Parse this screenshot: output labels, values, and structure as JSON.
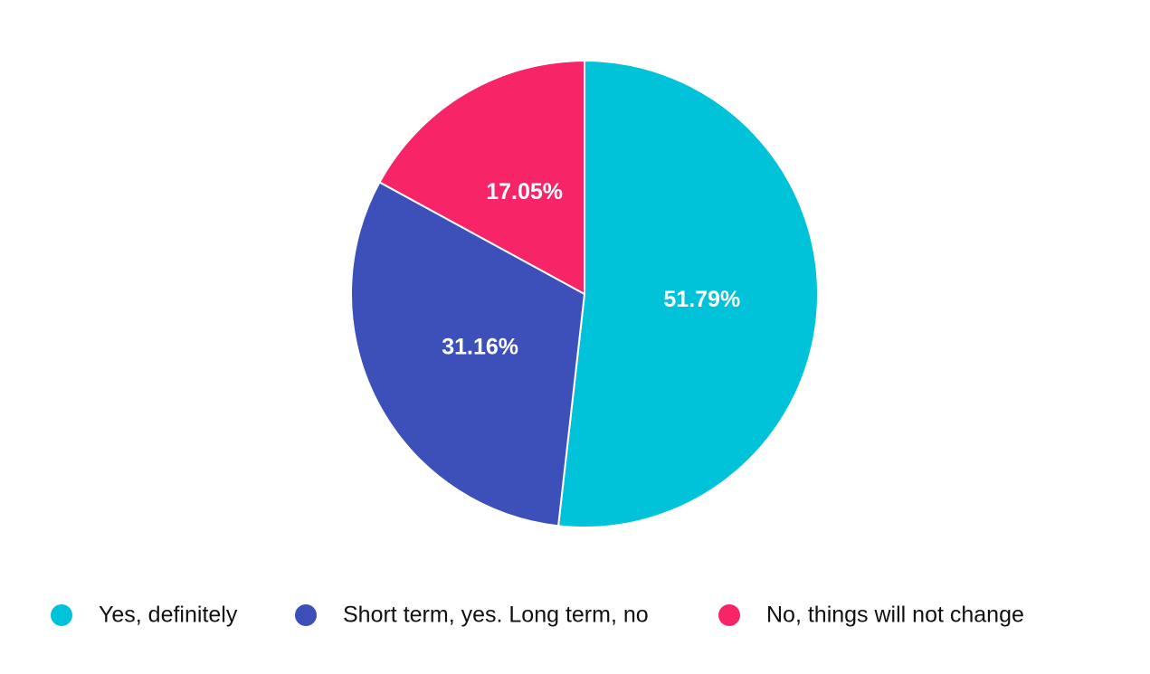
{
  "chart_data": {
    "type": "pie",
    "categories": [
      "Yes, definitely",
      "Short term, yes. Long term, no",
      "No, things will not change"
    ],
    "values": [
      51.79,
      31.16,
      17.05
    ],
    "value_labels": [
      "51.79%",
      "31.16%",
      "17.05%"
    ],
    "colors": [
      "#00c2d9",
      "#3d4fb8",
      "#f72468"
    ],
    "legend": "bottom"
  }
}
